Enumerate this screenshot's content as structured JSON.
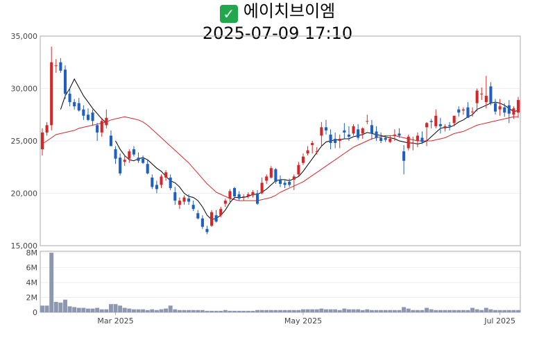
{
  "header": {
    "title": "에이치브이엠",
    "datetime": "2025-07-09 17:10",
    "title_icon": "check-mark-icon"
  },
  "colors": {
    "up": "#d62728",
    "down": "#1f5fbf",
    "ma_short": "#000000",
    "ma_long": "#d62728",
    "volume": "#8e97b0",
    "axis": "#aaaaaa",
    "grid": "#eeeeee"
  },
  "chart_data": [
    {
      "type": "candlestick",
      "yticks": [
        "35,000",
        "30,000",
        "25,000",
        "20,000",
        "15,000"
      ],
      "ytick_values": [
        35000,
        30000,
        25000,
        20000,
        15000
      ],
      "ylim": [
        15000,
        35000
      ],
      "xticks": [
        {
          "label": "Mar 2025",
          "index": 16
        },
        {
          "label": "May 2025",
          "index": 57
        },
        {
          "label": "Jul 2025",
          "index": 100
        }
      ],
      "ohlc": [
        [
          24200,
          26200,
          23600,
          25800
        ],
        [
          25800,
          26800,
          25500,
          26500
        ],
        [
          26500,
          34000,
          26000,
          32500
        ],
        [
          32200,
          32800,
          31500,
          32200
        ],
        [
          32500,
          32900,
          31500,
          31700
        ],
        [
          31800,
          32200,
          29000,
          29500
        ],
        [
          29500,
          30100,
          28300,
          28700
        ],
        [
          28700,
          29000,
          28000,
          28300
        ],
        [
          28600,
          29100,
          27800,
          27900
        ],
        [
          28000,
          28400,
          27000,
          27400
        ],
        [
          27500,
          28100,
          26900,
          27000
        ],
        [
          27700,
          28000,
          26500,
          26900
        ],
        [
          26500,
          26700,
          25000,
          25800
        ],
        [
          25800,
          27200,
          25400,
          26900
        ],
        [
          26500,
          28000,
          26200,
          27200
        ],
        [
          25500,
          26000,
          24500,
          24500
        ],
        [
          24200,
          24500,
          22800,
          23300
        ],
        [
          23400,
          23800,
          21700,
          21900
        ],
        [
          23000,
          23600,
          22600,
          23200
        ],
        [
          23300,
          24200,
          22900,
          24000
        ],
        [
          24200,
          24500,
          23500,
          23700
        ],
        [
          23400,
          23900,
          22900,
          23100
        ],
        [
          23300,
          23600,
          22800,
          22900
        ],
        [
          22800,
          23200,
          21800,
          21900
        ],
        [
          21500,
          21800,
          20400,
          20600
        ],
        [
          20800,
          21200,
          20000,
          20400
        ],
        [
          20800,
          21800,
          20500,
          21600
        ],
        [
          21500,
          22200,
          21200,
          22000
        ],
        [
          21500,
          21800,
          20300,
          20500
        ],
        [
          20100,
          20600,
          18900,
          19300
        ],
        [
          18900,
          19600,
          18500,
          19300
        ],
        [
          19200,
          19800,
          18900,
          19600
        ],
        [
          19500,
          19900,
          18900,
          19200
        ],
        [
          18900,
          19300,
          18300,
          18500
        ],
        [
          18100,
          18400,
          17500,
          17600
        ],
        [
          17600,
          17900,
          16600,
          16800
        ],
        [
          16600,
          16900,
          16100,
          16300
        ],
        [
          16900,
          18400,
          16800,
          18200
        ],
        [
          17900,
          18400,
          17200,
          17300
        ],
        [
          17900,
          18700,
          17700,
          18500
        ],
        [
          19000,
          19500,
          18700,
          19300
        ],
        [
          19500,
          20400,
          19000,
          20200
        ],
        [
          20500,
          20600,
          19400,
          19700
        ],
        [
          19900,
          20200,
          19300,
          19500
        ],
        [
          19600,
          19900,
          19300,
          19700
        ],
        [
          19700,
          20100,
          19500,
          19900
        ],
        [
          19800,
          20300,
          19600,
          20100
        ],
        [
          20000,
          20300,
          18900,
          19000
        ],
        [
          20000,
          21500,
          19900,
          21000
        ],
        [
          21200,
          21800,
          20900,
          21600
        ],
        [
          21500,
          22600,
          21400,
          22400
        ],
        [
          22300,
          22400,
          20900,
          21100
        ],
        [
          21300,
          21700,
          20600,
          20900
        ],
        [
          21000,
          21300,
          20500,
          20800
        ],
        [
          21100,
          21400,
          20600,
          20800
        ],
        [
          21300,
          21800,
          20300,
          21600
        ],
        [
          21800,
          23000,
          21600,
          22700
        ],
        [
          22900,
          23800,
          22700,
          23500
        ],
        [
          23800,
          24500,
          23600,
          24100
        ],
        [
          24600,
          25000,
          23800,
          24800
        ],
        [
          24000,
          24400,
          23700,
          24000
        ],
        [
          25500,
          26800,
          24500,
          26300
        ],
        [
          26300,
          27000,
          25600,
          26000
        ],
        [
          25600,
          26100,
          24200,
          24800
        ],
        [
          25200,
          25800,
          24300,
          24800
        ],
        [
          25000,
          25600,
          24300,
          25200
        ],
        [
          26000,
          26700,
          25200,
          25800
        ],
        [
          25600,
          26400,
          25000,
          25400
        ],
        [
          25700,
          26600,
          25500,
          26400
        ],
        [
          26100,
          26600,
          25100,
          25300
        ],
        [
          25700,
          26300,
          25200,
          26200
        ],
        [
          26900,
          27500,
          26600,
          26900
        ],
        [
          26500,
          27000,
          25100,
          25700
        ],
        [
          25900,
          26400,
          25000,
          25300
        ],
        [
          25300,
          25800,
          24800,
          25000
        ],
        [
          25300,
          25500,
          24900,
          25100
        ],
        [
          24900,
          25500,
          24800,
          25200
        ],
        [
          25500,
          26100,
          25000,
          25600
        ],
        [
          25700,
          26200,
          25300,
          25500
        ],
        [
          24000,
          24600,
          21800,
          23100
        ],
        [
          24300,
          25600,
          24100,
          25400
        ],
        [
          24800,
          25400,
          24100,
          24800
        ],
        [
          25000,
          25800,
          24400,
          25500
        ],
        [
          25300,
          25900,
          24700,
          24900
        ],
        [
          26300,
          26800,
          24500,
          26700
        ],
        [
          26900,
          27100,
          26200,
          26800
        ],
        [
          26400,
          28000,
          26200,
          27400
        ],
        [
          26600,
          27200,
          25700,
          26400
        ],
        [
          26200,
          26600,
          25900,
          26400
        ],
        [
          26500,
          26800,
          26000,
          26400
        ],
        [
          26700,
          27400,
          26400,
          27400
        ],
        [
          28000,
          28300,
          27300,
          27700
        ],
        [
          27900,
          28200,
          27500,
          28000
        ],
        [
          28200,
          28700,
          27200,
          27200
        ],
        [
          27800,
          28200,
          27300,
          27800
        ],
        [
          28600,
          30000,
          27800,
          29800
        ],
        [
          29500,
          30100,
          28900,
          29500
        ],
        [
          28700,
          31200,
          28100,
          29300
        ],
        [
          30200,
          30600,
          28400,
          28600
        ],
        [
          28600,
          29000,
          27500,
          27800
        ],
        [
          28000,
          29000,
          27400,
          28300
        ],
        [
          28200,
          28600,
          27300,
          27700
        ],
        [
          28400,
          28900,
          26700,
          27600
        ],
        [
          27500,
          28300,
          27100,
          28100
        ],
        [
          27700,
          29200,
          27200,
          28900
        ]
      ],
      "ma_short": [
        null,
        null,
        null,
        null,
        28000,
        29300,
        30000,
        30900,
        30100,
        29300,
        28700,
        28100,
        27600,
        27100,
        26700,
        null,
        25000,
        24200,
        23600,
        23200,
        23100,
        23300,
        23400,
        23200,
        22800,
        22400,
        22100,
        21600,
        21200,
        21000,
        20600,
        20000,
        19700,
        19600,
        19300,
        18700,
        17900,
        17500,
        17600,
        17900,
        18400,
        19100,
        19600,
        19600,
        19600,
        19700,
        19900,
        19900,
        20100,
        20400,
        20800,
        21200,
        21300,
        21300,
        21200,
        21400,
        21600,
        22100,
        22700,
        23300,
        23900,
        24500,
        24900,
        25000,
        25100,
        25100,
        25200,
        25200,
        25400,
        25500,
        25600,
        25800,
        25700,
        25600,
        25500,
        25400,
        25300,
        25200,
        25000,
        24900,
        24800,
        24800,
        24700,
        24800,
        25000,
        25400,
        25800,
        26200,
        26300,
        26300,
        26500,
        26800,
        27000,
        27300,
        27500,
        28000,
        28200,
        28400,
        28600,
        28700,
        28600,
        28400,
        28100,
        27800,
        27900
      ],
      "ma_long": [
        24700,
        25000,
        25300,
        25600,
        25700,
        25800,
        25900,
        26000,
        26200,
        26300,
        26400,
        26500,
        26600,
        26700,
        26800,
        27000,
        27100,
        27200,
        27300,
        27200,
        27100,
        27000,
        26800,
        26500,
        26100,
        25700,
        25300,
        24900,
        24500,
        24100,
        23700,
        23300,
        22900,
        22400,
        21900,
        21400,
        20900,
        20500,
        20100,
        19900,
        19700,
        19500,
        19400,
        19300,
        19300,
        19300,
        19300,
        19300,
        19400,
        19500,
        19600,
        19800,
        20100,
        20300,
        20500,
        20700,
        20900,
        21100,
        21400,
        21700,
        22000,
        22300,
        22600,
        22900,
        23200,
        23500,
        23800,
        24100,
        24400,
        24600,
        24800,
        25000,
        25200,
        25300,
        25400,
        25500,
        25500,
        25500,
        25400,
        25300,
        25200,
        25100,
        25000,
        25000,
        25000,
        25000,
        25100,
        25200,
        25300,
        25500,
        25700,
        25800,
        25900,
        26100,
        26300,
        26500,
        26600,
        26700,
        26800,
        26900,
        27000,
        27100,
        27200,
        27300,
        27300
      ]
    },
    {
      "type": "bar",
      "yticks": [
        "8M",
        "6M",
        "4M",
        "2M",
        "0"
      ],
      "ytick_values": [
        8,
        6,
        4,
        2,
        0
      ],
      "ylim": [
        0,
        8.2
      ],
      "unit": "M",
      "values": [
        0.9,
        0.9,
        8.0,
        1.4,
        1.3,
        1.7,
        0.8,
        0.7,
        0.6,
        0.6,
        0.5,
        0.5,
        0.6,
        0.4,
        0.4,
        1.1,
        1.1,
        0.9,
        0.6,
        0.5,
        0.4,
        0.4,
        0.4,
        0.3,
        0.4,
        0.3,
        0.4,
        0.5,
        0.9,
        0.4,
        0.3,
        0.3,
        0.3,
        0.3,
        0.3,
        0.3,
        0.2,
        0.2,
        0.2,
        0.2,
        0.3,
        0.2,
        0.2,
        0.2,
        0.2,
        0.2,
        0.2,
        0.3,
        0.3,
        0.3,
        0.3,
        0.3,
        0.3,
        0.3,
        0.3,
        0.3,
        0.3,
        0.4,
        0.4,
        0.4,
        0.4,
        0.5,
        0.4,
        0.4,
        0.4,
        0.3,
        0.5,
        0.4,
        0.4,
        0.4,
        0.3,
        0.4,
        0.3,
        0.3,
        0.3,
        0.3,
        0.3,
        0.3,
        0.3,
        0.7,
        0.5,
        0.3,
        0.3,
        0.3,
        0.6,
        0.4,
        0.3,
        0.3,
        0.3,
        0.3,
        0.3,
        0.3,
        0.3,
        0.3,
        0.6,
        0.4,
        0.3,
        0.6,
        0.4,
        0.3,
        0.3,
        0.3,
        0.3,
        0.3,
        0.3
      ]
    }
  ]
}
